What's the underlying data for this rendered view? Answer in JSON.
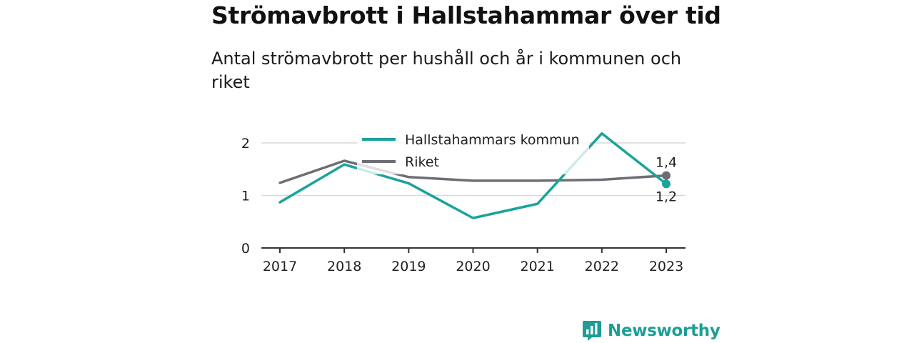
{
  "title": "Strömavbrott i Hallstahammar över tid",
  "subtitle": "Antal strömavbrott per hushåll och år i kommunen och riket",
  "brand": {
    "name": "Newsworthy",
    "color": "#1b9e96",
    "icon": "newsworthy-logo-icon"
  },
  "colors": {
    "kommun": "#1ba39a",
    "riket": "#6e6d75",
    "grid": "#d9d9d9",
    "axis": "#333333"
  },
  "chart_data": {
    "type": "line",
    "x": [
      "2017",
      "2018",
      "2019",
      "2020",
      "2021",
      "2022",
      "2023"
    ],
    "ylim": [
      0,
      2.5
    ],
    "yticks": [
      "0",
      "1",
      "2"
    ],
    "grid": true,
    "legend_position": "top-center",
    "series": [
      {
        "name": "Hallstahammars kommun",
        "values": [
          0.87,
          1.59,
          1.23,
          0.57,
          0.84,
          2.18,
          1.22
        ],
        "end_label": "1,2"
      },
      {
        "name": "Riket",
        "values": [
          1.24,
          1.66,
          1.35,
          1.28,
          1.28,
          1.3,
          1.38
        ],
        "end_label": "1,4"
      }
    ]
  }
}
